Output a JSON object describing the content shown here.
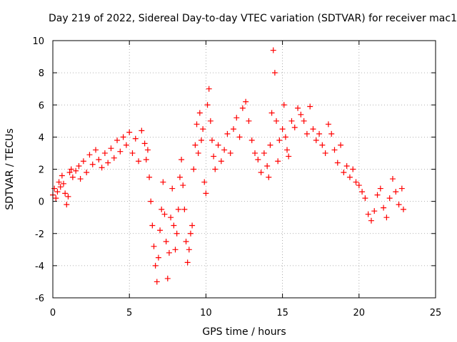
{
  "chart_data": {
    "type": "scatter",
    "title": "Day 219 of 2022, Sidereal Day-to-day VTEC variation (SDTVAR) for receiver mac1",
    "xlabel": "GPS time / hours",
    "ylabel": "SDTVAR / TECUs",
    "xlim": [
      0,
      25
    ],
    "ylim": [
      -6,
      10
    ],
    "x_ticks": [
      0,
      5,
      10,
      15,
      20,
      25
    ],
    "y_ticks": [
      -6,
      -4,
      -2,
      0,
      2,
      4,
      6,
      8,
      10
    ],
    "grid": true,
    "marker": "+",
    "marker_color": "#ff0000",
    "series": [
      {
        "name": "SDTVAR",
        "points": [
          [
            0.0,
            0.4
          ],
          [
            0.1,
            0.8
          ],
          [
            0.2,
            0.2
          ],
          [
            0.3,
            0.6
          ],
          [
            0.4,
            1.2
          ],
          [
            0.5,
            0.9
          ],
          [
            0.6,
            1.6
          ],
          [
            0.7,
            1.1
          ],
          [
            0.8,
            0.5
          ],
          [
            0.9,
            -0.2
          ],
          [
            1.0,
            0.3
          ],
          [
            1.1,
            1.8
          ],
          [
            1.2,
            2.0
          ],
          [
            1.3,
            1.5
          ],
          [
            1.5,
            1.9
          ],
          [
            1.7,
            2.2
          ],
          [
            1.8,
            1.4
          ],
          [
            2.0,
            2.5
          ],
          [
            2.2,
            1.8
          ],
          [
            2.4,
            2.9
          ],
          [
            2.6,
            2.3
          ],
          [
            2.8,
            3.2
          ],
          [
            3.0,
            2.6
          ],
          [
            3.2,
            2.1
          ],
          [
            3.4,
            3.0
          ],
          [
            3.6,
            2.4
          ],
          [
            3.8,
            3.3
          ],
          [
            4.0,
            2.7
          ],
          [
            4.2,
            3.8
          ],
          [
            4.4,
            3.1
          ],
          [
            4.6,
            4.0
          ],
          [
            4.8,
            3.5
          ],
          [
            5.0,
            4.3
          ],
          [
            5.2,
            3.0
          ],
          [
            5.4,
            3.9
          ],
          [
            5.6,
            2.5
          ],
          [
            5.8,
            4.4
          ],
          [
            6.0,
            3.6
          ],
          [
            6.1,
            2.6
          ],
          [
            6.2,
            3.2
          ],
          [
            6.3,
            1.5
          ],
          [
            6.4,
            0.0
          ],
          [
            6.5,
            -1.5
          ],
          [
            6.6,
            -2.8
          ],
          [
            6.7,
            -4.0
          ],
          [
            6.8,
            -5.0
          ],
          [
            6.9,
            -3.5
          ],
          [
            7.0,
            -1.8
          ],
          [
            7.1,
            -0.5
          ],
          [
            7.2,
            1.2
          ],
          [
            7.3,
            -0.8
          ],
          [
            7.4,
            -2.5
          ],
          [
            7.5,
            -4.8
          ],
          [
            7.6,
            -3.2
          ],
          [
            7.7,
            -1.0
          ],
          [
            7.8,
            0.8
          ],
          [
            7.9,
            -1.5
          ],
          [
            8.0,
            -3.0
          ],
          [
            8.1,
            -2.0
          ],
          [
            8.2,
            -0.5
          ],
          [
            8.3,
            1.5
          ],
          [
            8.4,
            2.6
          ],
          [
            8.5,
            1.0
          ],
          [
            8.6,
            -0.5
          ],
          [
            8.7,
            -2.5
          ],
          [
            8.8,
            -3.8
          ],
          [
            8.9,
            -3.0
          ],
          [
            9.0,
            -2.0
          ],
          [
            9.1,
            -1.5
          ],
          [
            9.2,
            2.0
          ],
          [
            9.3,
            3.5
          ],
          [
            9.4,
            4.8
          ],
          [
            9.5,
            3.0
          ],
          [
            9.6,
            5.5
          ],
          [
            9.7,
            3.8
          ],
          [
            9.8,
            4.5
          ],
          [
            9.9,
            1.2
          ],
          [
            10.0,
            0.5
          ],
          [
            10.1,
            6.0
          ],
          [
            10.2,
            7.0
          ],
          [
            10.3,
            5.0
          ],
          [
            10.4,
            3.8
          ],
          [
            10.5,
            2.8
          ],
          [
            10.6,
            2.0
          ],
          [
            10.8,
            3.5
          ],
          [
            11.0,
            2.5
          ],
          [
            11.2,
            3.2
          ],
          [
            11.4,
            4.2
          ],
          [
            11.6,
            3.0
          ],
          [
            11.8,
            4.5
          ],
          [
            12.0,
            5.2
          ],
          [
            12.2,
            4.0
          ],
          [
            12.4,
            5.8
          ],
          [
            12.6,
            6.2
          ],
          [
            12.8,
            5.0
          ],
          [
            13.0,
            3.8
          ],
          [
            13.2,
            3.0
          ],
          [
            13.4,
            2.6
          ],
          [
            13.6,
            1.8
          ],
          [
            13.8,
            3.0
          ],
          [
            14.0,
            2.2
          ],
          [
            14.1,
            1.5
          ],
          [
            14.2,
            3.5
          ],
          [
            14.3,
            5.5
          ],
          [
            14.4,
            9.4
          ],
          [
            14.5,
            8.0
          ],
          [
            14.6,
            5.0
          ],
          [
            14.7,
            2.5
          ],
          [
            14.8,
            3.8
          ],
          [
            15.0,
            4.5
          ],
          [
            15.1,
            6.0
          ],
          [
            15.2,
            4.0
          ],
          [
            15.3,
            3.2
          ],
          [
            15.4,
            2.8
          ],
          [
            15.6,
            5.0
          ],
          [
            15.8,
            4.6
          ],
          [
            16.0,
            5.8
          ],
          [
            16.2,
            5.4
          ],
          [
            16.4,
            5.0
          ],
          [
            16.6,
            4.2
          ],
          [
            16.8,
            5.9
          ],
          [
            17.0,
            4.5
          ],
          [
            17.2,
            3.8
          ],
          [
            17.4,
            4.2
          ],
          [
            17.6,
            3.5
          ],
          [
            17.8,
            3.0
          ],
          [
            18.0,
            4.8
          ],
          [
            18.2,
            4.2
          ],
          [
            18.4,
            3.2
          ],
          [
            18.6,
            2.4
          ],
          [
            18.8,
            3.5
          ],
          [
            19.0,
            1.8
          ],
          [
            19.2,
            2.2
          ],
          [
            19.4,
            1.5
          ],
          [
            19.6,
            2.0
          ],
          [
            19.8,
            1.2
          ],
          [
            20.0,
            1.0
          ],
          [
            20.2,
            0.6
          ],
          [
            20.4,
            0.2
          ],
          [
            20.6,
            -0.8
          ],
          [
            20.8,
            -1.2
          ],
          [
            21.0,
            -0.6
          ],
          [
            21.2,
            0.4
          ],
          [
            21.4,
            0.8
          ],
          [
            21.6,
            -0.4
          ],
          [
            21.8,
            -1.0
          ],
          [
            22.0,
            0.2
          ],
          [
            22.2,
            1.4
          ],
          [
            22.4,
            0.6
          ],
          [
            22.6,
            -0.2
          ],
          [
            22.8,
            0.8
          ],
          [
            22.9,
            -0.5
          ]
        ]
      }
    ]
  }
}
